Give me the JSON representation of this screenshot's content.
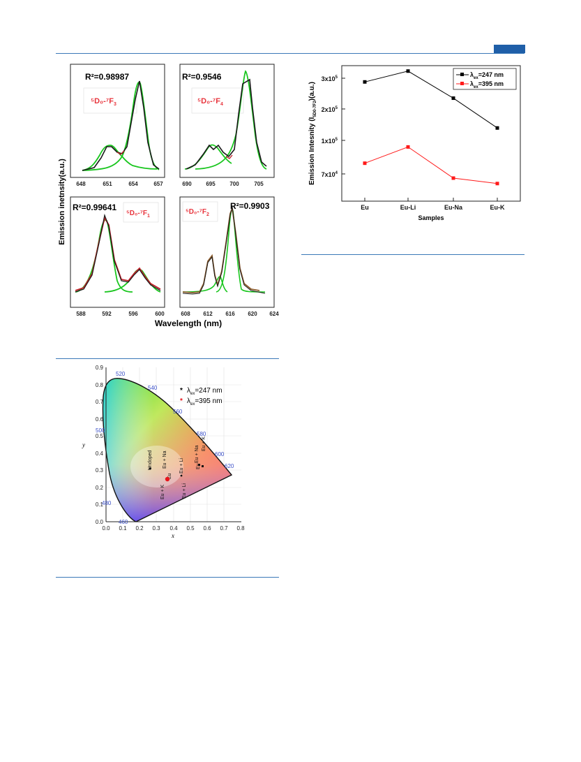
{
  "header": {
    "accent_color": "#1f5fa8",
    "rule_color": "#3a78b8"
  },
  "fig_fit": {
    "ylabel": "Emission inetnsity(a.u.)",
    "xlabel": "Wavelength (nm)",
    "panels": [
      {
        "r2": "R²=0.98987",
        "trans_main": "⁵D₀-⁷F",
        "trans_sub": "3",
        "x_ticks": [
          "648",
          "651",
          "654",
          "657"
        ]
      },
      {
        "r2": "R²=0.9546",
        "trans_main": "⁵D₀-⁷F",
        "trans_sub": "4",
        "x_ticks": [
          "690",
          "695",
          "700",
          "705"
        ]
      },
      {
        "r2": "R²=0.99641",
        "trans_main": "⁵D₀-⁷F",
        "trans_sub": "1",
        "x_ticks": [
          "588",
          "592",
          "596",
          "600"
        ]
      },
      {
        "r2": "R²=0.9903",
        "trans_main": "⁵D₀-⁷F",
        "trans_sub": "2",
        "x_ticks": [
          "608",
          "612",
          "616",
          "620",
          "624"
        ]
      }
    ],
    "colors": {
      "data": "#1a1a1a",
      "fit": "#19c61e",
      "sum": "#c0202a",
      "sum2": "#8b5a2b",
      "trans_label": "#e8343c"
    }
  },
  "fig_cie": {
    "xlabel": "x",
    "ylabel": "y",
    "x_ticks": [
      "0.0",
      "0.1",
      "0.2",
      "0.3",
      "0.4",
      "0.5",
      "0.6",
      "0.7",
      "0.8"
    ],
    "y_ticks": [
      "0.0",
      "0.1",
      "0.2",
      "0.3",
      "0.4",
      "0.5",
      "0.6",
      "0.7",
      "0.8",
      "0.9"
    ],
    "wavelength_labels": [
      "520",
      "540",
      "560",
      "580",
      "600",
      "620",
      "500",
      "480",
      "460"
    ],
    "legend": [
      {
        "symbol": "*",
        "text_main": "λ",
        "text_sub": "ex",
        "text_tail": "=247 nm",
        "color": "#000000"
      },
      {
        "symbol": "*",
        "text_main": "λ",
        "text_sub": "ex",
        "text_tail": "=395 nm",
        "color": "#e8141c"
      }
    ],
    "point_labels": [
      "Undoped",
      "Eu + Na",
      "Eu + K",
      "Eu",
      "Eu + Li",
      "Eu + Li",
      "Eu + Na",
      "Eu + K",
      "Eu"
    ]
  },
  "chart_data": {
    "type": "line",
    "title": "",
    "xlabel": "Samples",
    "ylabel_main": "Emission Intesnity (I",
    "ylabel_sub": "5D0-7F2",
    "ylabel_tail": ")(a.u.)",
    "categories": [
      "Eu",
      "Eu-Li",
      "Eu-Na",
      "Eu-K"
    ],
    "y_ticks": [
      {
        "main": "7x10",
        "sup": "4"
      },
      {
        "main": "1x10",
        "sup": "5"
      },
      {
        "main": "2x10",
        "sup": "5"
      },
      {
        "main": "3x10",
        "sup": "5"
      }
    ],
    "series": [
      {
        "name_main": "λ",
        "name_sub": "ex",
        "name_tail": "=247 nm",
        "color": "#000000",
        "values": [
          0.88,
          0.96,
          0.76,
          0.54
        ]
      },
      {
        "name_main": "λ",
        "name_sub": "ex",
        "name_tail": "=395 nm",
        "color": "#ff1a1a",
        "values": [
          0.28,
          0.4,
          0.17,
          0.13
        ]
      }
    ],
    "y_scale": "relative position on drawn axis (0 = bottom, 1 = top)",
    "legend_position": "top-right",
    "grid": false
  }
}
